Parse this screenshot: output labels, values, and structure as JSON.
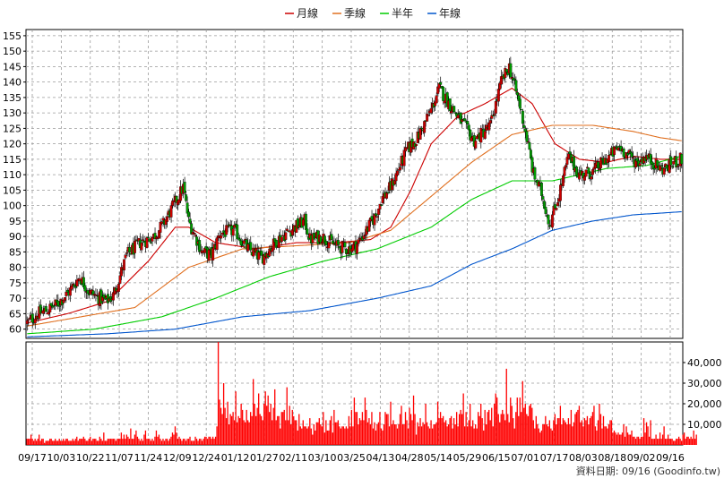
{
  "legend": [
    {
      "label": "月線",
      "color": "#cc0000"
    },
    {
      "label": "季線",
      "color": "#e07020"
    },
    {
      "label": "半年",
      "color": "#00cc00"
    },
    {
      "label": "年線",
      "color": "#0055cc"
    }
  ],
  "footer": "資料日期: 09/16  (Goodinfo.tw)",
  "chart_data": [
    {
      "type": "candlestick",
      "title": "",
      "grid": true,
      "legend_position": "top-center",
      "ylim": [
        57,
        157
      ],
      "y_ticks": [
        60,
        65,
        70,
        75,
        80,
        85,
        90,
        95,
        100,
        105,
        110,
        115,
        120,
        125,
        130,
        135,
        140,
        145,
        150,
        155
      ],
      "x_tick_labels": [
        "09/17",
        "10/03",
        "10/22",
        "11/07",
        "11/24",
        "12/09",
        "12/24",
        "01/12",
        "01/27",
        "02/11",
        "03/10",
        "03/25",
        "04/13",
        "04/28",
        "05/14",
        "05/29",
        "06/15",
        "07/01",
        "07/17",
        "08/03",
        "08/18",
        "09/02",
        "09/16"
      ],
      "close_path": [
        [
          0,
          62
        ],
        [
          8,
          65
        ],
        [
          14,
          66
        ],
        [
          22,
          68
        ],
        [
          31,
          72
        ],
        [
          39,
          77
        ],
        [
          46,
          72
        ],
        [
          54,
          70
        ],
        [
          59,
          69
        ],
        [
          64,
          71
        ],
        [
          68,
          76
        ],
        [
          74,
          84
        ],
        [
          84,
          88
        ],
        [
          94,
          90
        ],
        [
          101,
          94
        ],
        [
          110,
          101
        ],
        [
          116,
          106
        ],
        [
          120,
          95
        ],
        [
          130,
          85
        ],
        [
          137,
          84
        ],
        [
          143,
          91
        ],
        [
          154,
          92
        ],
        [
          164,
          86
        ],
        [
          174,
          83
        ],
        [
          186,
          89
        ],
        [
          195,
          92
        ],
        [
          206,
          95
        ],
        [
          210,
          89
        ],
        [
          219,
          90
        ],
        [
          229,
          87
        ],
        [
          238,
          86
        ],
        [
          244,
          87
        ],
        [
          252,
          92
        ],
        [
          259,
          97
        ],
        [
          263,
          102
        ],
        [
          270,
          106
        ],
        [
          276,
          112
        ],
        [
          282,
          118
        ],
        [
          290,
          122
        ],
        [
          300,
          131
        ],
        [
          306,
          138
        ],
        [
          318,
          130
        ],
        [
          332,
          121
        ],
        [
          344,
          126
        ],
        [
          352,
          140
        ],
        [
          358,
          145
        ],
        [
          366,
          132
        ],
        [
          370,
          124
        ],
        [
          376,
          110
        ],
        [
          382,
          104
        ],
        [
          388,
          94
        ],
        [
          394,
          102
        ],
        [
          402,
          116
        ],
        [
          410,
          110
        ],
        [
          420,
          111
        ],
        [
          430,
          115
        ],
        [
          440,
          119
        ],
        [
          447,
          116
        ],
        [
          453,
          114
        ],
        [
          459,
          116
        ],
        [
          465,
          114
        ],
        [
          470,
          112
        ],
        [
          474,
          112
        ],
        [
          480,
          114
        ],
        [
          486,
          115
        ]
      ],
      "series": [
        {
          "name": "月線",
          "values": [
            [
              0,
              62
            ],
            [
              30,
              65
            ],
            [
              60,
              69
            ],
            [
              90,
              82
            ],
            [
              110,
              93
            ],
            [
              120,
              93
            ],
            [
              140,
              88
            ],
            [
              170,
              86
            ],
            [
              200,
              88
            ],
            [
              230,
              88
            ],
            [
              255,
              89
            ],
            [
              270,
              93
            ],
            [
              285,
              105
            ],
            [
              300,
              120
            ],
            [
              320,
              129
            ],
            [
              340,
              133
            ],
            [
              360,
              138
            ],
            [
              375,
              133
            ],
            [
              392,
              120
            ],
            [
              410,
              115
            ],
            [
              430,
              114
            ],
            [
              450,
              116
            ],
            [
              470,
              115
            ],
            [
              486,
              115
            ]
          ]
        },
        {
          "name": "季線",
          "values": [
            [
              0,
              61
            ],
            [
              40,
              64
            ],
            [
              80,
              67
            ],
            [
              120,
              80
            ],
            [
              160,
              86
            ],
            [
              200,
              87
            ],
            [
              240,
              88
            ],
            [
              270,
              92
            ],
            [
              300,
              103
            ],
            [
              330,
              114
            ],
            [
              360,
              123
            ],
            [
              390,
              126
            ],
            [
              420,
              126
            ],
            [
              450,
              124
            ],
            [
              470,
              122
            ],
            [
              486,
              121
            ]
          ]
        },
        {
          "name": "半年",
          "values": [
            [
              0,
              58.5
            ],
            [
              50,
              60
            ],
            [
              100,
              64
            ],
            [
              140,
              70
            ],
            [
              180,
              77
            ],
            [
              220,
              82
            ],
            [
              260,
              86
            ],
            [
              300,
              93
            ],
            [
              330,
              102
            ],
            [
              360,
              108
            ],
            [
              390,
              108
            ],
            [
              430,
              112
            ],
            [
              460,
              113
            ],
            [
              486,
              116
            ]
          ]
        },
        {
          "name": "年線",
          "values": [
            [
              0,
              57.5
            ],
            [
              60,
              58.5
            ],
            [
              110,
              60
            ],
            [
              160,
              64
            ],
            [
              210,
              66
            ],
            [
              260,
              70
            ],
            [
              300,
              74
            ],
            [
              330,
              81
            ],
            [
              360,
              86
            ],
            [
              390,
              92
            ],
            [
              420,
              95
            ],
            [
              450,
              97
            ],
            [
              486,
              98
            ]
          ]
        }
      ]
    },
    {
      "type": "bar",
      "title": "",
      "grid": true,
      "ylim": [
        0,
        50000
      ],
      "y_tick_labels": [
        "10,000",
        "20,000",
        "30,000",
        "40,000"
      ],
      "values": [
        3000,
        3000,
        3000,
        5000,
        3000,
        2000,
        3000,
        2000,
        3000,
        5000,
        2000,
        3000,
        3000,
        1000,
        2000,
        2000,
        2000,
        3000,
        3000,
        2000,
        2000,
        3000,
        2000,
        2000,
        3000,
        2000,
        2000,
        3000,
        2000,
        3000,
        3000,
        2000,
        2000,
        2000,
        3000,
        2000,
        3000,
        4000,
        2000,
        3000,
        3000,
        3000,
        4000,
        3000,
        2000,
        2000,
        3000,
        4000,
        2000,
        3000,
        3000,
        3000,
        2000,
        2000,
        4000,
        3000,
        2000,
        6000,
        2000,
        2000,
        3000,
        3000,
        3000,
        3000,
        3000,
        3000,
        2000,
        3000,
        3000,
        3000,
        6000,
        3000,
        5000,
        3000,
        5000,
        4000,
        3000,
        8000,
        3000,
        3000,
        5000,
        7000,
        4000,
        3000,
        2000,
        3000,
        2000,
        5000,
        7000,
        3000,
        3000,
        3000,
        2000,
        3000,
        2000,
        4000,
        7000,
        4000,
        5000,
        3000,
        2000,
        3000,
        2000,
        3000,
        3000,
        2000,
        3000,
        4000,
        6000,
        5000,
        9000,
        6000,
        3000,
        4000,
        3000,
        2000,
        3000,
        3000,
        2000,
        3000,
        3000,
        4000,
        2000,
        2000,
        2000,
        4000,
        3000,
        2000,
        3000,
        3000,
        2000,
        3000,
        4000,
        4000,
        3000,
        4000,
        4000,
        3000,
        4000,
        3000,
        4000,
        9000,
        50000,
        22000,
        18000,
        15000,
        30000,
        18000,
        13000,
        21000,
        10000,
        15000,
        14000,
        16000,
        12000,
        26000,
        11000,
        14000,
        13000,
        20000,
        17000,
        12000,
        11000,
        17000,
        12000,
        11000,
        16000,
        14000,
        32000,
        20000,
        14000,
        18000,
        25000,
        15000,
        14000,
        12000,
        20000,
        26000,
        19000,
        24000,
        16000,
        20000,
        12000,
        18000,
        27000,
        12000,
        14000,
        14000,
        8000,
        16000,
        16000,
        17000,
        12000,
        28000,
        12000,
        19000,
        10000,
        17000,
        14000,
        12000,
        12000,
        7000,
        15000,
        9000,
        8000,
        12000,
        9000,
        9000,
        8000,
        9000,
        13000,
        8000,
        5000,
        10000,
        7000,
        11000,
        11000,
        13000,
        10000,
        9000,
        16000,
        6000,
        12000,
        7000,
        7000,
        12000,
        14000,
        6000,
        17000,
        11000,
        11000,
        12000,
        9000,
        8000,
        9000,
        9000,
        8000,
        9000,
        8000,
        14000,
        9000,
        17000,
        9000,
        23000,
        16000,
        16000,
        10000,
        13000,
        12000,
        16000,
        12000,
        23000,
        17000,
        11000,
        13000,
        10000,
        16000,
        8000,
        11000,
        7000,
        10000,
        11000,
        16000,
        8000,
        7000,
        10000,
        16000,
        15000,
        15000,
        9000,
        21000,
        10000,
        12000,
        10000,
        10000,
        8000,
        10000,
        15000,
        19000,
        10000,
        10000,
        16000,
        12000,
        8000,
        18000,
        15000,
        12000,
        24000,
        15000,
        5000,
        11000,
        9000,
        13000,
        9000,
        11000,
        10000,
        20000,
        11000,
        9000,
        8000,
        12000,
        8000,
        10000,
        10000,
        11000,
        21000,
        13000,
        16000,
        13000,
        14000,
        11000,
        12000,
        9000,
        10000,
        13000,
        14000,
        8000,
        13000,
        10000,
        16000,
        9000,
        15000,
        17000,
        15000,
        25000,
        9000,
        16000,
        9000,
        12000,
        20000,
        9000,
        12000,
        8000,
        10000,
        8000,
        16000,
        14000,
        20000,
        13000,
        7000,
        17000,
        10000,
        16000,
        17000,
        12000,
        18000,
        9000,
        20000,
        25000,
        23000,
        15000,
        11000,
        15000,
        17000,
        15000,
        12000,
        37000,
        15000,
        11000,
        23000,
        19000,
        13000,
        8000,
        16000,
        23000,
        14000,
        23000,
        16000,
        31000,
        18000,
        20000,
        15000,
        14000,
        19000,
        20000,
        18000,
        12000,
        8000,
        14000,
        10000,
        8000,
        6000,
        7000,
        10000,
        10000,
        14000,
        10000,
        9000,
        12000,
        8000,
        7000,
        12000,
        15000,
        10000,
        13000,
        13000,
        19000,
        10000,
        13000,
        12000,
        11000,
        10000,
        13000,
        10000,
        17000,
        9000,
        11000,
        15000,
        16000,
        17000,
        19000,
        11000,
        12000,
        9000,
        13000,
        12000,
        14000,
        10000,
        13000,
        14000,
        16000,
        19000,
        9000,
        7000,
        12000,
        20000,
        15000,
        8000,
        14000,
        9000,
        9000,
        8000,
        10000,
        12000,
        12000,
        6000,
        7000,
        6000,
        5000,
        6000,
        5000,
        5000,
        6000,
        10000,
        4000,
        9000,
        6000,
        5000,
        5000,
        7000,
        4000,
        4000,
        3000,
        4000,
        4000,
        3000,
        4000,
        4000,
        13000,
        6000,
        11000,
        9000,
        4000,
        12000,
        3000,
        3000,
        3000,
        5000,
        3000,
        3000,
        6000,
        3000,
        5000,
        9000,
        3000,
        3000,
        5000,
        3000,
        3000,
        3000,
        2000,
        2000,
        3000,
        3000,
        4000,
        3000,
        2000,
        5000,
        6000,
        3000,
        4000,
        4000,
        3000,
        4000,
        3000,
        7000,
        3000,
        5000
      ]
    }
  ]
}
